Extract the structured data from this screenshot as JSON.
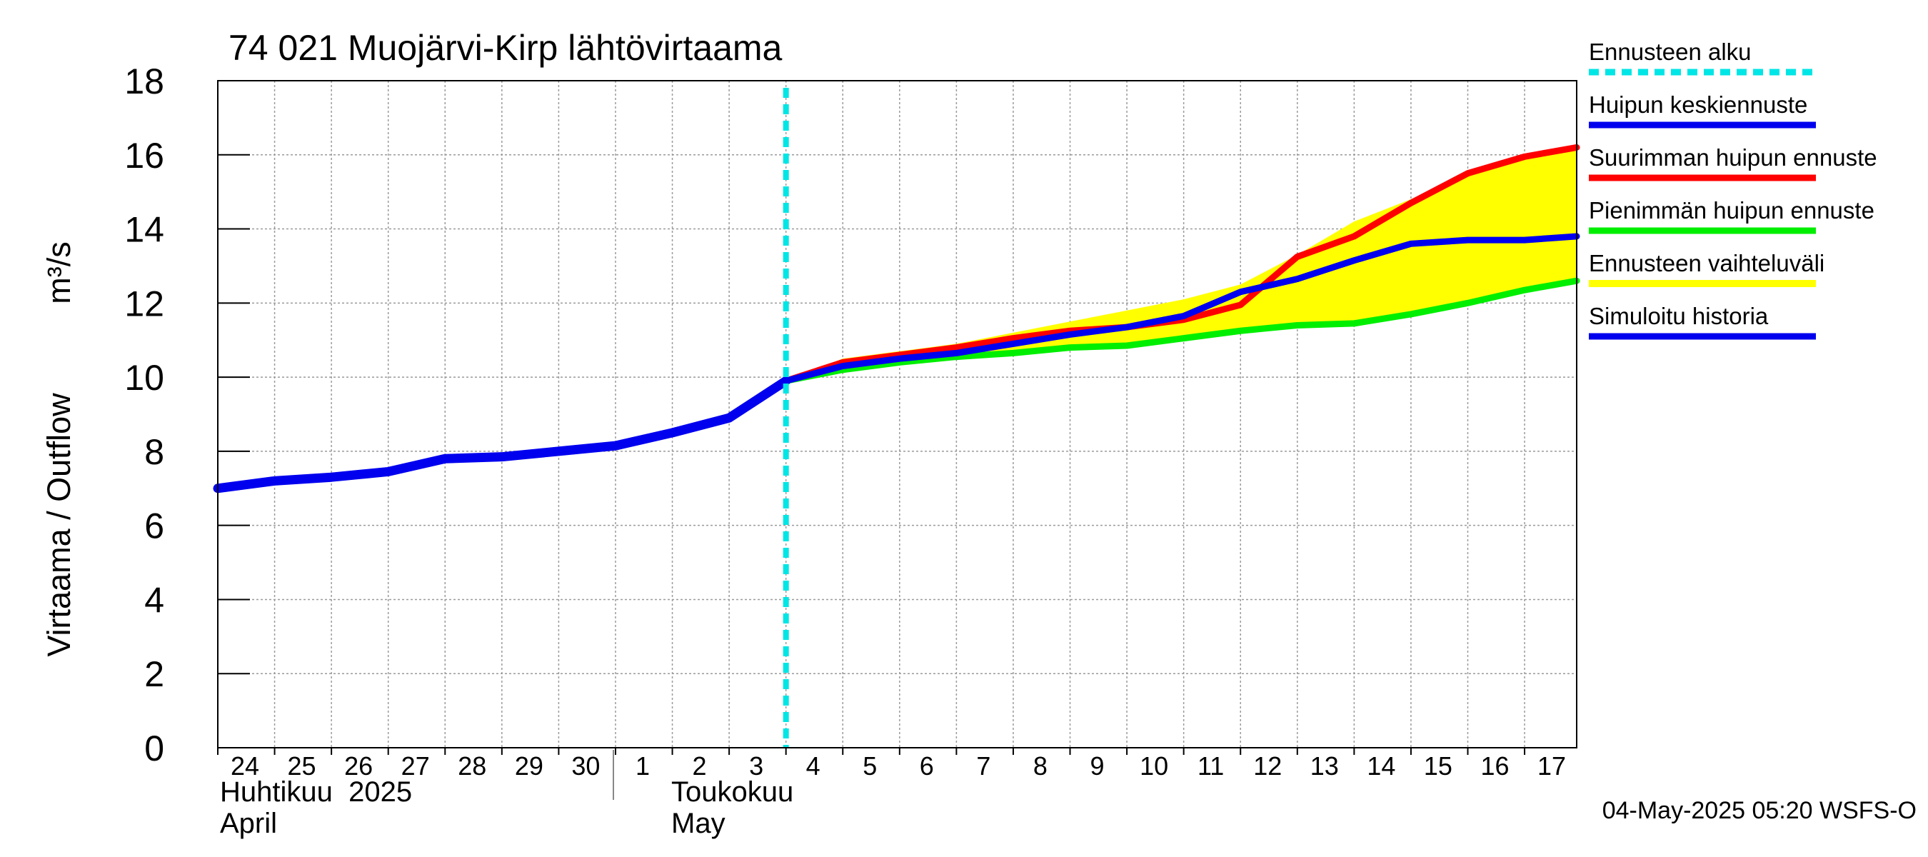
{
  "chart_data": {
    "type": "line",
    "title": "74 021 Muojärvi-Kirp lähtövirtaama",
    "ylabel": "Virtaama / Outflow",
    "yunit": "m³/s",
    "ylim": [
      0,
      18
    ],
    "yticks": [
      0,
      2,
      4,
      6,
      8,
      10,
      12,
      14,
      16,
      18
    ],
    "xlim": [
      "2025-04-24",
      "2025-05-17T22:00"
    ],
    "grid": true,
    "legend_position": "right",
    "x_day_labels": [
      "24",
      "25",
      "26",
      "27",
      "28",
      "29",
      "30",
      "1",
      "2",
      "3",
      "4",
      "5",
      "6",
      "7",
      "8",
      "9",
      "10",
      "11",
      "12",
      "13",
      "14",
      "15",
      "16",
      "17"
    ],
    "month_labels": [
      {
        "fi": "Huhtikuu  2025",
        "en": "April"
      },
      {
        "fi": "Toukokuu",
        "en": "May"
      }
    ],
    "forecast_start": "2025-05-04T00:00",
    "timestamp": "04-May-2025 05:20 WSFS-O",
    "legend": [
      {
        "label": "Ennusteen alku",
        "color": "#00e5e5",
        "style": "dashed"
      },
      {
        "label": "Huipun keskiennuste",
        "color": "#0000ee",
        "style": "solid"
      },
      {
        "label": "Suurimman huipun ennuste",
        "color": "#ff0000",
        "style": "solid"
      },
      {
        "label": "Pienimmän huipun ennuste",
        "color": "#00ee00",
        "style": "solid"
      },
      {
        "label": "Ennusteen vaihteluväli",
        "color": "#ffff00",
        "style": "band"
      },
      {
        "label": "Simuloitu historia",
        "color": "#0000ee",
        "style": "solid"
      }
    ],
    "series": [
      {
        "key": "history",
        "color": "#0000ee",
        "x": [
          "2025-04-24",
          "2025-04-25",
          "2025-04-26",
          "2025-04-27",
          "2025-04-28",
          "2025-04-29",
          "2025-04-30",
          "2025-05-01",
          "2025-05-02",
          "2025-05-03",
          "2025-05-04"
        ],
        "y": [
          7.0,
          7.2,
          7.3,
          7.45,
          7.8,
          7.85,
          8.0,
          8.15,
          8.5,
          8.9,
          9.9
        ]
      },
      {
        "key": "band",
        "color": "#ffff00",
        "x": [
          "2025-05-04",
          "2025-05-05",
          "2025-05-06",
          "2025-05-07",
          "2025-05-08",
          "2025-05-09",
          "2025-05-10",
          "2025-05-11",
          "2025-05-12",
          "2025-05-13",
          "2025-05-14",
          "2025-05-15",
          "2025-05-16",
          "2025-05-17",
          "2025-05-17T22:00"
        ],
        "upper": [
          9.9,
          10.5,
          10.7,
          10.9,
          11.2,
          11.5,
          11.8,
          12.1,
          12.5,
          13.3,
          14.2,
          14.8,
          15.5,
          16.0,
          16.2
        ],
        "lower": [
          9.9,
          10.2,
          10.4,
          10.55,
          10.65,
          10.8,
          10.9,
          11.05,
          11.2,
          11.4,
          11.45,
          11.7,
          12.0,
          12.3,
          12.55
        ]
      },
      {
        "key": "max",
        "color": "#ff0000",
        "x": [
          "2025-05-04",
          "2025-05-05",
          "2025-05-06",
          "2025-05-07",
          "2025-05-08",
          "2025-05-09",
          "2025-05-10",
          "2025-05-11",
          "2025-05-12",
          "2025-05-13",
          "2025-05-14",
          "2025-05-15",
          "2025-05-16",
          "2025-05-17",
          "2025-05-17T22:00"
        ],
        "y": [
          9.9,
          10.4,
          10.6,
          10.8,
          11.05,
          11.25,
          11.35,
          11.55,
          11.95,
          13.25,
          13.8,
          14.7,
          15.5,
          15.95,
          16.2
        ]
      },
      {
        "key": "min",
        "color": "#00ee00",
        "x": [
          "2025-05-04",
          "2025-05-05",
          "2025-05-06",
          "2025-05-07",
          "2025-05-08",
          "2025-05-09",
          "2025-05-10",
          "2025-05-11",
          "2025-05-12",
          "2025-05-13",
          "2025-05-14",
          "2025-05-15",
          "2025-05-16",
          "2025-05-17",
          "2025-05-17T22:00"
        ],
        "y": [
          9.9,
          10.2,
          10.4,
          10.55,
          10.65,
          10.8,
          10.85,
          11.05,
          11.25,
          11.4,
          11.45,
          11.7,
          12.0,
          12.35,
          12.6
        ]
      },
      {
        "key": "mean",
        "color": "#0000ee",
        "x": [
          "2025-05-04",
          "2025-05-05",
          "2025-05-06",
          "2025-05-07",
          "2025-05-08",
          "2025-05-09",
          "2025-05-10",
          "2025-05-11",
          "2025-05-12",
          "2025-05-13",
          "2025-05-14",
          "2025-05-15",
          "2025-05-16",
          "2025-05-17",
          "2025-05-17T22:00"
        ],
        "y": [
          9.9,
          10.3,
          10.5,
          10.65,
          10.9,
          11.15,
          11.35,
          11.65,
          12.3,
          12.65,
          13.15,
          13.6,
          13.7,
          13.7,
          13.8
        ]
      }
    ]
  }
}
